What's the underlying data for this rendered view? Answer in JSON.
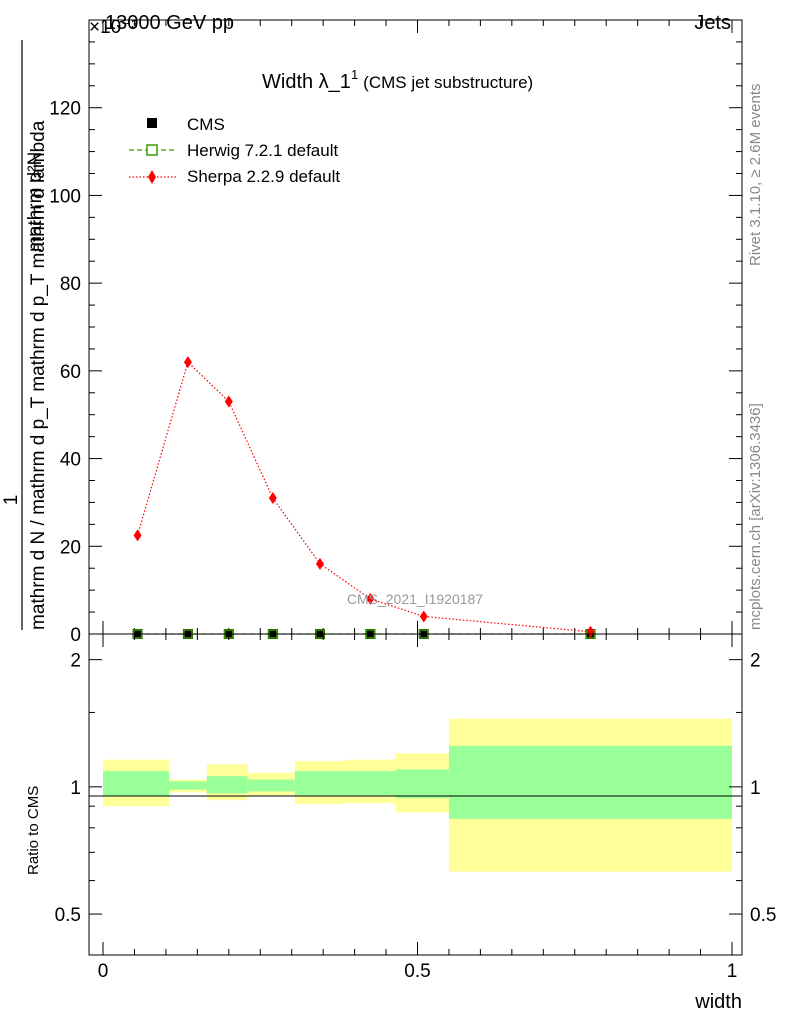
{
  "header": {
    "left": "13000 GeV pp",
    "right": "Jets",
    "exponent": "×10⁻³"
  },
  "side_text": {
    "rivet": "Rivet 3.1.10, ≥ 2.6M events",
    "mcplots": "mcplots.cern.ch [arXiv:1306.3436]"
  },
  "watermark": "CMS_2021_I1920187",
  "chart_data": [
    {
      "type": "line",
      "title": "Width λ_1¹ (CMS jet substructure)",
      "title_main": "Width λ_1",
      "title_sup": "1",
      "title_sub": "(CMS jet substructure)",
      "ylabel_numerator": "1",
      "ylabel_denominator": "mathrm d N / mathrm d p_T mathrm d p_T mathrm d lambda",
      "ylabel_top": "mathrm d²N",
      "y_multiplier": "×10⁻³",
      "xlim": [
        0,
        1
      ],
      "ylim": [
        0,
        140
      ],
      "y_ticks": [
        0,
        20,
        40,
        60,
        80,
        100,
        120
      ],
      "legend_position": "top-left",
      "series": [
        {
          "name": "CMS",
          "marker": "filled-square",
          "color": "#000000",
          "x": [
            0.055,
            0.135,
            0.2,
            0.27,
            0.345,
            0.425,
            0.51,
            0.775
          ],
          "values": [
            0,
            0,
            0,
            0,
            0,
            0,
            0,
            0
          ]
        },
        {
          "name": "Herwig 7.2.1 default",
          "marker": "open-square",
          "line": "dashed",
          "color": "#3a9a00",
          "x": [
            0.055,
            0.135,
            0.2,
            0.27,
            0.345,
            0.425,
            0.51,
            0.775
          ],
          "values": [
            0,
            0,
            0,
            0,
            0,
            0,
            0,
            0
          ]
        },
        {
          "name": "Sherpa 2.2.9 default",
          "marker": "diamond",
          "line": "dotted",
          "color": "#ff0000",
          "x": [
            0.055,
            0.135,
            0.2,
            0.27,
            0.345,
            0.425,
            0.51,
            0.775
          ],
          "values": [
            22.5,
            62,
            53,
            31,
            16,
            8,
            4,
            0.5
          ]
        }
      ]
    },
    {
      "type": "area",
      "ylabel": "Ratio to CMS",
      "xlabel": "width",
      "xlim": [
        0,
        1
      ],
      "ylim": [
        0.4,
        2.3
      ],
      "y_scale": "log",
      "x_ticks": [
        0,
        0.5,
        1
      ],
      "x_tick_labels": [
        "0",
        "0.5",
        "1"
      ],
      "y_ticks": [
        0.5,
        1,
        2
      ],
      "y_tick_labels": [
        "0.5",
        "1",
        "2"
      ],
      "bands": [
        {
          "x0": 0.0,
          "x1": 0.105,
          "inner": [
            0.95,
            1.09
          ],
          "outer": [
            0.9,
            1.16
          ]
        },
        {
          "x0": 0.105,
          "x1": 0.165,
          "inner": [
            0.985,
            1.03
          ],
          "outer": [
            0.97,
            1.04
          ]
        },
        {
          "x0": 0.165,
          "x1": 0.23,
          "inner": [
            0.965,
            1.06
          ],
          "outer": [
            0.93,
            1.13
          ]
        },
        {
          "x0": 0.23,
          "x1": 0.305,
          "inner": [
            0.975,
            1.04
          ],
          "outer": [
            0.955,
            1.08
          ]
        },
        {
          "x0": 0.305,
          "x1": 0.385,
          "inner": [
            0.955,
            1.09
          ],
          "outer": [
            0.91,
            1.15
          ]
        },
        {
          "x0": 0.385,
          "x1": 0.465,
          "inner": [
            0.955,
            1.09
          ],
          "outer": [
            0.915,
            1.16
          ]
        },
        {
          "x0": 0.465,
          "x1": 0.55,
          "inner": [
            0.94,
            1.1
          ],
          "outer": [
            0.87,
            1.2
          ]
        },
        {
          "x0": 0.55,
          "x1": 1.0,
          "inner": [
            0.84,
            1.25
          ],
          "outer": [
            0.63,
            1.45
          ]
        }
      ],
      "colors": {
        "inner": "#99ff99",
        "outer": "#ffff99"
      }
    }
  ]
}
